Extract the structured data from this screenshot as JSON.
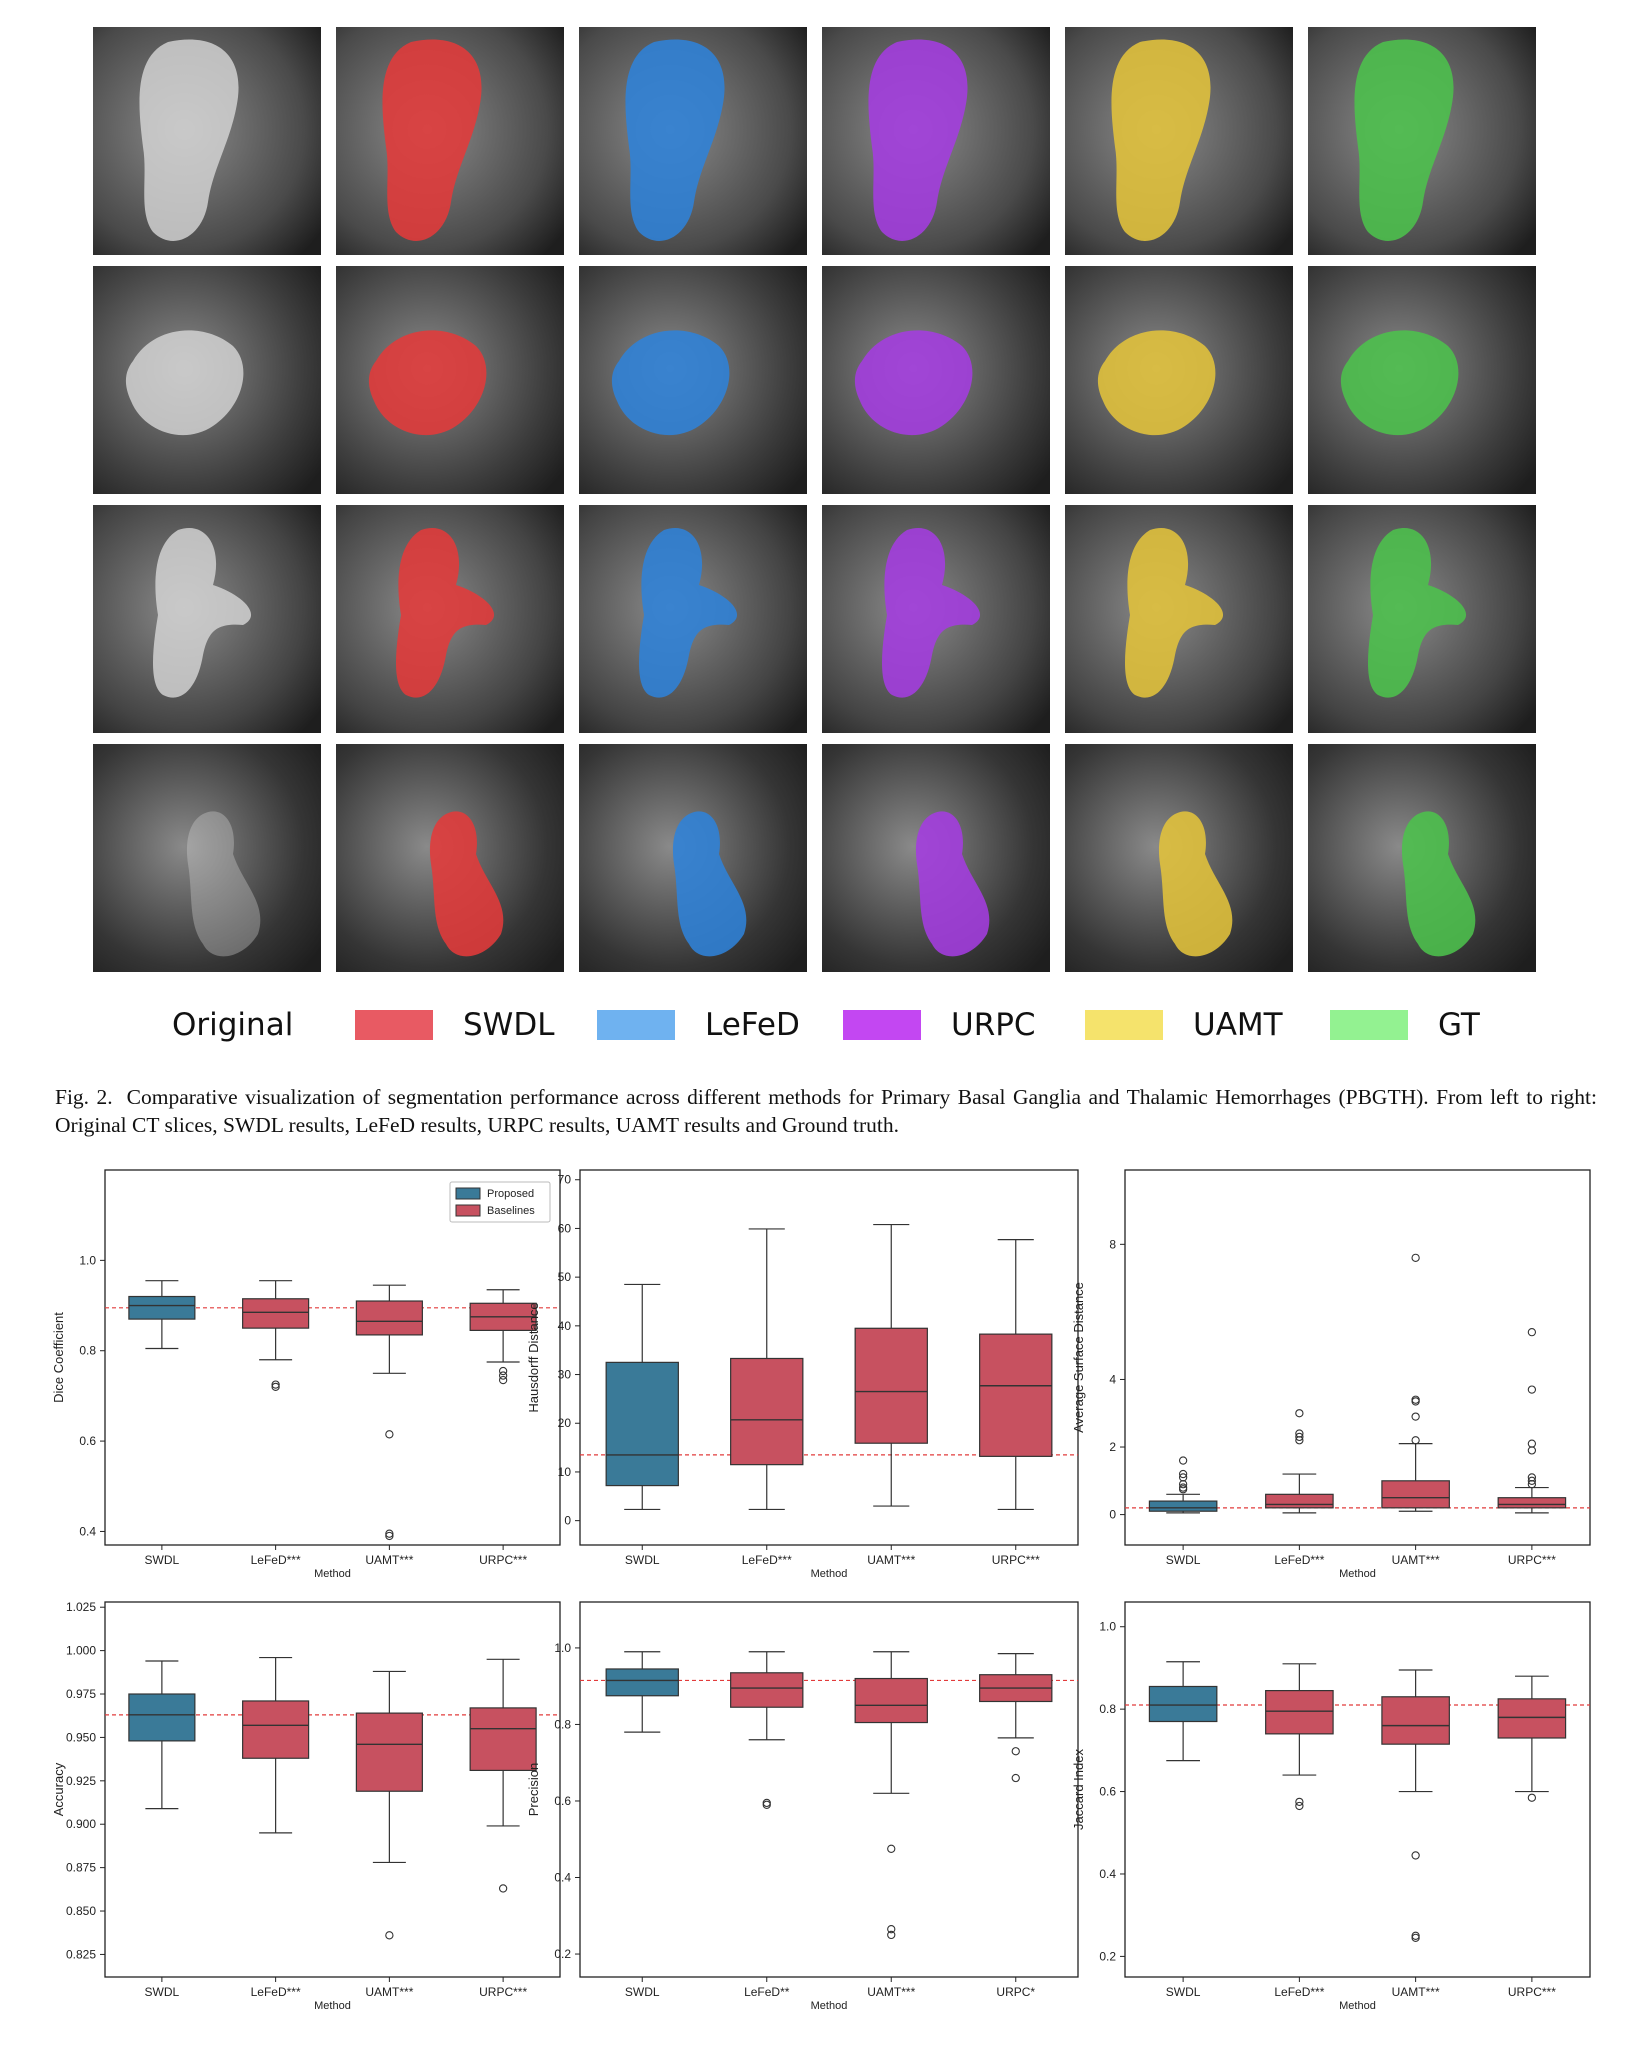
{
  "legend": {
    "items": [
      {
        "label": "Original",
        "color": null
      },
      {
        "label": "SWDL",
        "color": "#e85a63"
      },
      {
        "label": "LeFeD",
        "color": "#6fb2f0"
      },
      {
        "label": "URPC",
        "color": "#c347f2"
      },
      {
        "label": "UAMT",
        "color": "#f5e36c"
      },
      {
        "label": "GT",
        "color": "#93f291"
      }
    ]
  },
  "figure": {
    "columns": [
      "Original",
      "SWDL",
      "LeFeD",
      "URPC",
      "UAMT",
      "GT"
    ],
    "overlay_colors": {
      "SWDL": "#e23a3a",
      "LeFeD": "#2f82d8",
      "URPC": "#a43ce0",
      "UAMT": "#e3c33b",
      "GT": "#4cc24c"
    },
    "rows": 4
  },
  "caption": {
    "label": "Fig. 2.",
    "text": "Comparative visualization of segmentation performance across different methods for Primary Basal Ganglia and Thalamic Hemorrhages (PBGTH). From left to right: Original CT slices, SWDL results, LeFeD results, URPC results, UAMT results and Ground truth."
  },
  "chart_data": [
    {
      "type": "box",
      "ylabel": "Dice Coefficient",
      "xlabel": "Method",
      "categories": [
        "SWDL",
        "LeFeD***",
        "UAMT***",
        "URPC***"
      ],
      "ylim": [
        0.37,
        1.2
      ],
      "yticks": [
        0.4,
        0.6,
        0.8,
        1.0
      ],
      "ytick_labels": [
        "0.4",
        "0.6",
        "0.8",
        "1.0"
      ],
      "reference_line": 0.895,
      "legend": {
        "position": "top-right",
        "entries": [
          {
            "name": "Proposed",
            "color": "#3a7a98"
          },
          {
            "name": "Baselines",
            "color": "#c75160"
          }
        ]
      },
      "boxes": [
        {
          "group": "Proposed",
          "whislo": 0.805,
          "q1": 0.87,
          "med": 0.9,
          "q3": 0.92,
          "whishi": 0.955,
          "fliers": []
        },
        {
          "group": "Baselines",
          "whislo": 0.78,
          "q1": 0.85,
          "med": 0.885,
          "q3": 0.915,
          "whishi": 0.955,
          "fliers": [
            0.725,
            0.72
          ]
        },
        {
          "group": "Baselines",
          "whislo": 0.75,
          "q1": 0.835,
          "med": 0.865,
          "q3": 0.91,
          "whishi": 0.945,
          "fliers": [
            0.615,
            0.395,
            0.39
          ]
        },
        {
          "group": "Baselines",
          "whislo": 0.775,
          "q1": 0.845,
          "med": 0.875,
          "q3": 0.905,
          "whishi": 0.935,
          "fliers": [
            0.755,
            0.745,
            0.735
          ]
        }
      ]
    },
    {
      "type": "box",
      "ylabel": "Hausdorff Distance",
      "xlabel": "Method",
      "categories": [
        "SWDL",
        "LeFeD***",
        "UAMT***",
        "URPC***"
      ],
      "ylim": [
        -5,
        72
      ],
      "yticks": [
        0,
        10,
        20,
        30,
        40,
        50,
        60,
        70
      ],
      "ytick_labels": [
        "0",
        "10",
        "20",
        "30",
        "40",
        "50",
        "60",
        "70"
      ],
      "reference_line": 13.5,
      "boxes": [
        {
          "group": "Proposed",
          "whislo": 2.3,
          "q1": 7.2,
          "med": 13.5,
          "q3": 32.5,
          "whishi": 48.5,
          "fliers": []
        },
        {
          "group": "Baselines",
          "whislo": 2.3,
          "q1": 11.5,
          "med": 20.7,
          "q3": 33.3,
          "whishi": 59.9,
          "fliers": []
        },
        {
          "group": "Baselines",
          "whislo": 3.0,
          "q1": 15.9,
          "med": 26.5,
          "q3": 39.5,
          "whishi": 60.8,
          "fliers": []
        },
        {
          "group": "Baselines",
          "whislo": 2.3,
          "q1": 13.2,
          "med": 27.7,
          "q3": 38.3,
          "whishi": 57.7,
          "fliers": []
        }
      ]
    },
    {
      "type": "box",
      "ylabel": "Average Surface Distance",
      "xlabel": "Method",
      "categories": [
        "SWDL",
        "LeFeD***",
        "UAMT***",
        "URPC***"
      ],
      "ylim": [
        -0.9,
        10.2
      ],
      "yticks": [
        0,
        2,
        4,
        8
      ],
      "ytick_labels": [
        "0",
        "2",
        "4",
        "8"
      ],
      "reference_line": 0.2,
      "boxes": [
        {
          "group": "Proposed",
          "whislo": 0.05,
          "q1": 0.1,
          "med": 0.2,
          "q3": 0.4,
          "whishi": 0.6,
          "fliers": [
            0.75,
            0.8,
            0.9,
            1.1,
            1.2,
            1.6
          ]
        },
        {
          "group": "Baselines",
          "whislo": 0.05,
          "q1": 0.2,
          "med": 0.3,
          "q3": 0.6,
          "whishi": 1.2,
          "fliers": [
            2.2,
            2.3,
            2.4,
            3.0
          ]
        },
        {
          "group": "Baselines",
          "whislo": 0.1,
          "q1": 0.2,
          "med": 0.5,
          "q3": 1.0,
          "whishi": 2.1,
          "fliers": [
            2.2,
            2.9,
            3.35,
            3.4,
            7.6
          ]
        },
        {
          "group": "Baselines",
          "whislo": 0.05,
          "q1": 0.2,
          "med": 0.3,
          "q3": 0.5,
          "whishi": 0.8,
          "fliers": [
            0.9,
            1.0,
            1.1,
            1.9,
            2.1,
            3.7,
            5.4
          ]
        }
      ]
    },
    {
      "type": "box",
      "ylabel": "Accuracy",
      "xlabel": "Method",
      "categories": [
        "SWDL",
        "LeFeD***",
        "UAMT***",
        "URPC***"
      ],
      "ylim": [
        0.812,
        1.028
      ],
      "yticks": [
        0.825,
        0.85,
        0.875,
        0.9,
        0.925,
        0.95,
        0.975,
        1.0,
        1.025
      ],
      "ytick_labels": [
        "0.825",
        "0.850",
        "0.875",
        "0.900",
        "0.925",
        "0.950",
        "0.975",
        "1.000",
        "1.025"
      ],
      "reference_line": 0.963,
      "boxes": [
        {
          "group": "Proposed",
          "whislo": 0.909,
          "q1": 0.948,
          "med": 0.963,
          "q3": 0.975,
          "whishi": 0.994,
          "fliers": []
        },
        {
          "group": "Baselines",
          "whislo": 0.895,
          "q1": 0.938,
          "med": 0.957,
          "q3": 0.971,
          "whishi": 0.996,
          "fliers": []
        },
        {
          "group": "Baselines",
          "whislo": 0.878,
          "q1": 0.919,
          "med": 0.946,
          "q3": 0.964,
          "whishi": 0.988,
          "fliers": [
            0.836
          ]
        },
        {
          "group": "Baselines",
          "whislo": 0.899,
          "q1": 0.931,
          "med": 0.955,
          "q3": 0.967,
          "whishi": 0.995,
          "fliers": [
            0.863
          ]
        }
      ]
    },
    {
      "type": "box",
      "ylabel": "Precision",
      "xlabel": "Method",
      "categories": [
        "SWDL",
        "LeFeD**",
        "UAMT***",
        "URPC*"
      ],
      "ylim": [
        0.14,
        1.12
      ],
      "yticks": [
        0.2,
        0.4,
        0.6,
        0.8,
        1.0
      ],
      "ytick_labels": [
        "0.2",
        "0.4",
        "0.6",
        "0.8",
        "1.0"
      ],
      "reference_line": 0.915,
      "boxes": [
        {
          "group": "Proposed",
          "whislo": 0.78,
          "q1": 0.875,
          "med": 0.915,
          "q3": 0.945,
          "whishi": 0.99,
          "fliers": []
        },
        {
          "group": "Baselines",
          "whislo": 0.76,
          "q1": 0.845,
          "med": 0.895,
          "q3": 0.935,
          "whishi": 0.99,
          "fliers": [
            0.595,
            0.59
          ]
        },
        {
          "group": "Baselines",
          "whislo": 0.62,
          "q1": 0.805,
          "med": 0.85,
          "q3": 0.92,
          "whishi": 0.99,
          "fliers": [
            0.475,
            0.265,
            0.25
          ]
        },
        {
          "group": "Baselines",
          "whislo": 0.765,
          "q1": 0.86,
          "med": 0.895,
          "q3": 0.93,
          "whishi": 0.985,
          "fliers": [
            0.73,
            0.66
          ]
        }
      ]
    },
    {
      "type": "box",
      "ylabel": "Jaccard Index",
      "xlabel": "Method",
      "categories": [
        "SWDL",
        "LeFeD***",
        "UAMT***",
        "URPC***"
      ],
      "ylim": [
        0.15,
        1.06
      ],
      "yticks": [
        0.2,
        0.4,
        0.6,
        0.8,
        1.0
      ],
      "ytick_labels": [
        "0.2",
        "0.4",
        "0.6",
        "0.8",
        "1.0"
      ],
      "reference_line": 0.81,
      "boxes": [
        {
          "group": "Proposed",
          "whislo": 0.675,
          "q1": 0.77,
          "med": 0.81,
          "q3": 0.855,
          "whishi": 0.915,
          "fliers": []
        },
        {
          "group": "Baselines",
          "whislo": 0.64,
          "q1": 0.74,
          "med": 0.795,
          "q3": 0.845,
          "whishi": 0.91,
          "fliers": [
            0.575,
            0.565
          ]
        },
        {
          "group": "Baselines",
          "whislo": 0.6,
          "q1": 0.715,
          "med": 0.76,
          "q3": 0.83,
          "whishi": 0.895,
          "fliers": [
            0.445,
            0.25,
            0.245
          ]
        },
        {
          "group": "Baselines",
          "whislo": 0.6,
          "q1": 0.73,
          "med": 0.78,
          "q3": 0.825,
          "whishi": 0.88,
          "fliers": [
            0.585
          ]
        }
      ]
    }
  ]
}
